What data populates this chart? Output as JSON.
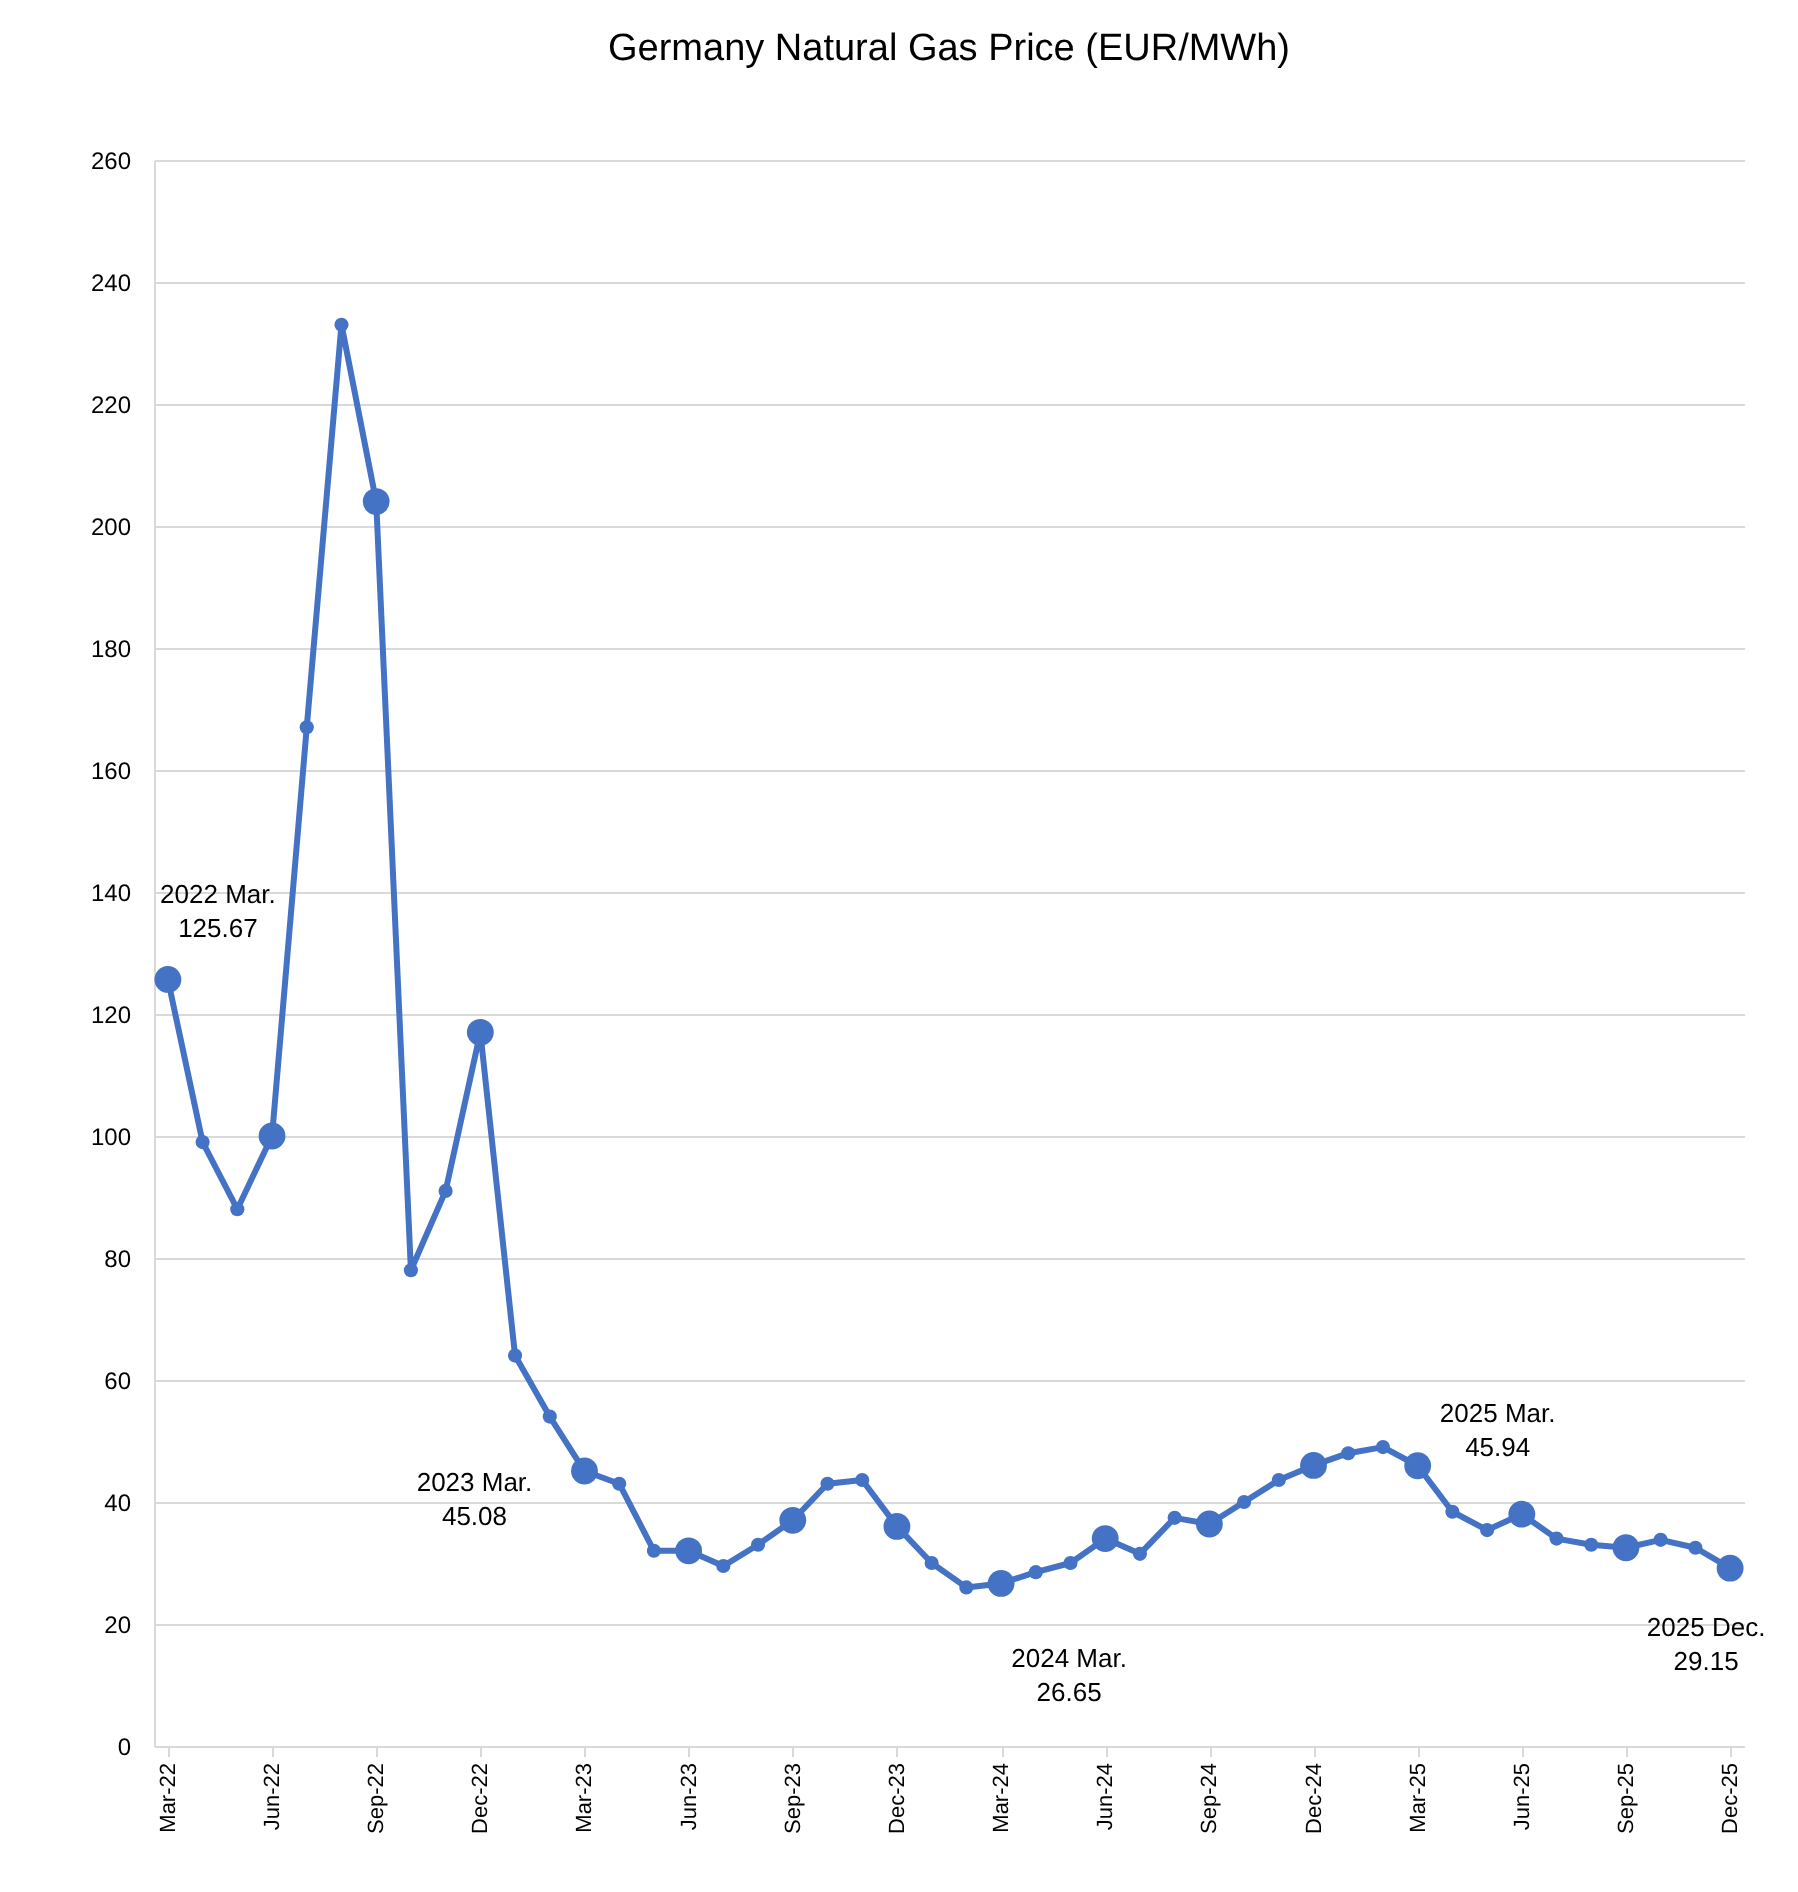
{
  "chart_data": {
    "type": "line",
    "title": "Germany Natural Gas Price (EUR/MWh)",
    "categories": [
      "Mar-22",
      null,
      null,
      "Jun-22",
      null,
      null,
      "Sep-22",
      null,
      null,
      "Dec-22",
      null,
      null,
      "Mar-23",
      null,
      null,
      "Jun-23",
      null,
      null,
      "Sep-23",
      null,
      null,
      "Dec-23",
      null,
      null,
      "Mar-24",
      null,
      null,
      "Jun-24",
      null,
      null,
      "Sep-24",
      null,
      null,
      "Dec-24",
      null,
      null,
      "Mar-25",
      null,
      null,
      "Jun-25",
      null,
      null,
      "Sep-25",
      null,
      null,
      "Dec-25"
    ],
    "series": [
      {
        "color": "#4472c4",
        "values": [
          125.67,
          99,
          88,
          100,
          167,
          233,
          204,
          78,
          91,
          117,
          64,
          54,
          45.08,
          43,
          32,
          32,
          29.5,
          33,
          37,
          43,
          43.6,
          36,
          30,
          26,
          26.65,
          28.5,
          30,
          34,
          31.5,
          37.4,
          36.4,
          40,
          43.6,
          46,
          48,
          49,
          45.94,
          38.4,
          35.4,
          38,
          34,
          33,
          32.5,
          33.8,
          32.5,
          29.15
        ]
      }
    ],
    "ylim": [
      0,
      260
    ],
    "yticks": [
      0,
      20,
      40,
      60,
      80,
      100,
      120,
      140,
      160,
      180,
      200,
      220,
      240,
      260
    ],
    "grid": "y",
    "marker": "circle",
    "line_style": "solid",
    "annotations": [
      {
        "text": "2022 Mar.\n125.67",
        "x": "Mar-22",
        "y": 125.67
      },
      {
        "text": "2023 Mar.\n45.08",
        "x": "Mar-23",
        "y": 45.08
      },
      {
        "text": "2024 Mar.\n26.65",
        "x": "Mar-24",
        "y": 26.65
      },
      {
        "text": "2025 Mar.\n45.94",
        "x": "Mar-25",
        "y": 45.94
      },
      {
        "text": "2025 Dec.\n29.15",
        "x": "Dec-25",
        "y": 29.15
      }
    ]
  }
}
